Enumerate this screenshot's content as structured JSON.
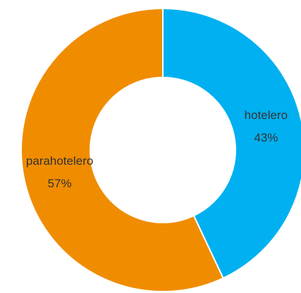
{
  "chart_data": {
    "type": "donut",
    "categories": [
      "hotelero",
      "parahotelero"
    ],
    "values": [
      43,
      57
    ],
    "value_labels": [
      "43%",
      "57%"
    ],
    "colors": [
      "#00B0F0",
      "#F08C00"
    ]
  }
}
